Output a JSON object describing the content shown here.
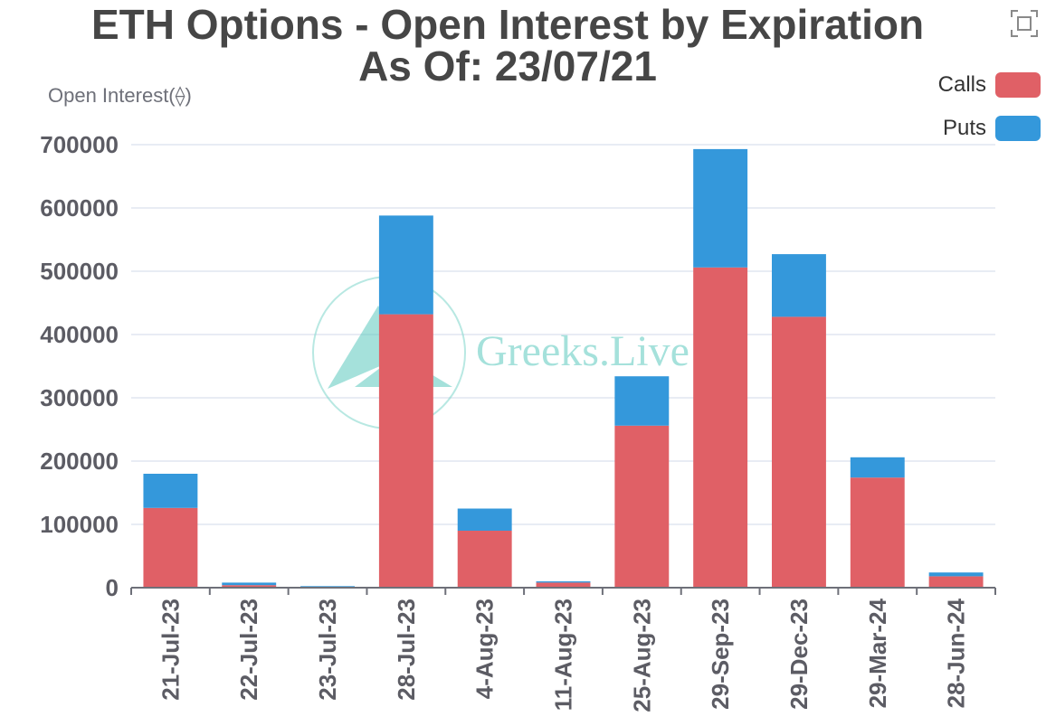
{
  "title": {
    "line1": "ETH Options - Open Interest by Expiration",
    "line2": "As Of: 23/07/21"
  },
  "watermark": "Greeks.Live",
  "toolbar": {
    "fullscreen_icon": "fullscreen-icon"
  },
  "colors": {
    "calls": "#e06066",
    "puts": "#3498db",
    "grid": "#e0e6f1",
    "axis": "#6e7079"
  },
  "chart_data": {
    "type": "bar",
    "stacked": true,
    "ylabel": "Open Interest(⟠)",
    "ylim": [
      0,
      700000
    ],
    "yticks": [
      0,
      100000,
      200000,
      300000,
      400000,
      500000,
      600000,
      700000
    ],
    "grid": true,
    "legend_position": "top-right",
    "categories": [
      "21-Jul-23",
      "22-Jul-23",
      "23-Jul-23",
      "28-Jul-23",
      "4-Aug-23",
      "11-Aug-23",
      "25-Aug-23",
      "29-Sep-23",
      "29-Dec-23",
      "29-Mar-24",
      "28-Jun-24"
    ],
    "series": [
      {
        "name": "Calls",
        "color": "#e06066",
        "values": [
          126000,
          4000,
          1500,
          432000,
          90000,
          8000,
          256000,
          506000,
          428000,
          174000,
          18000
        ]
      },
      {
        "name": "Puts",
        "color": "#3498db",
        "values": [
          54000,
          4000,
          1000,
          156000,
          35000,
          2000,
          78000,
          187000,
          99000,
          32000,
          6000
        ]
      }
    ]
  }
}
